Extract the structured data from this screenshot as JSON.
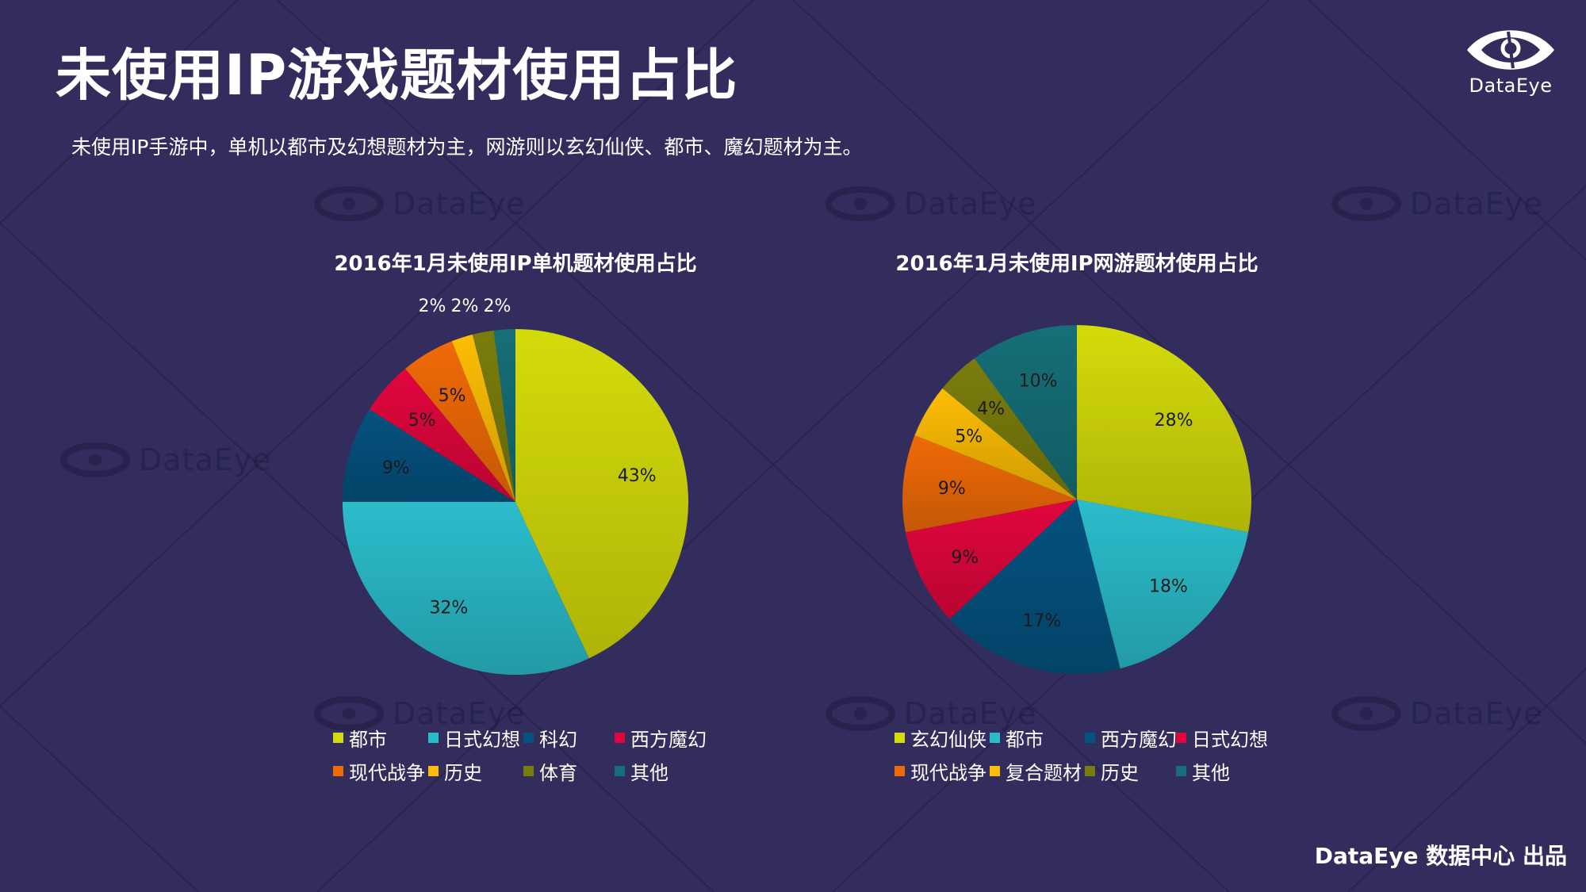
{
  "page": {
    "title": "未使用IP游戏题材使用占比",
    "subtitle": "未使用IP手游中，单机以都市及幻想题材为主，网游则以玄幻仙侠、都市、魔幻题材为主。",
    "logo_text": "DataEye",
    "watermark_text": "DataEye",
    "footer": "DataEye 数据中心 出品",
    "background_color": "#322d5c"
  },
  "chart_data": [
    {
      "type": "pie",
      "title": "2016年1月未使用IP单机题材使用占比",
      "categories": [
        "都市",
        "日式幻想",
        "科幻",
        "西方魔幻",
        "现代战争",
        "历史",
        "体育",
        "其他"
      ],
      "values": [
        43,
        32,
        9,
        5,
        5,
        2,
        2,
        2
      ],
      "labels": [
        "43%",
        "32%",
        "9%",
        "5%",
        "5%",
        "2%",
        "2%",
        "2%"
      ],
      "colors": [
        "#d4db0a",
        "#2bbccb",
        "#04527f",
        "#e0063d",
        "#f06a07",
        "#fdbd05",
        "#7a7d0c",
        "#166f78"
      ],
      "start_angle": "12 o'clock, clockwise",
      "legend_position": "bottom"
    },
    {
      "type": "pie",
      "title": "2016年1月未使用IP网游题材使用占比",
      "categories": [
        "玄幻仙侠",
        "都市",
        "西方魔幻",
        "日式幻想",
        "现代战争",
        "复合题材",
        "历史",
        "其他"
      ],
      "values": [
        28,
        18,
        17,
        9,
        9,
        5,
        4,
        10
      ],
      "labels": [
        "28%",
        "18%",
        "17%",
        "9%",
        "9%",
        "5%",
        "4%",
        "10%"
      ],
      "colors": [
        "#d4db0a",
        "#2bbccb",
        "#04527f",
        "#e0063d",
        "#f06a07",
        "#fdbd05",
        "#7a7d0c",
        "#166f78"
      ],
      "start_angle": "12 o'clock, clockwise",
      "legend_position": "bottom"
    }
  ]
}
